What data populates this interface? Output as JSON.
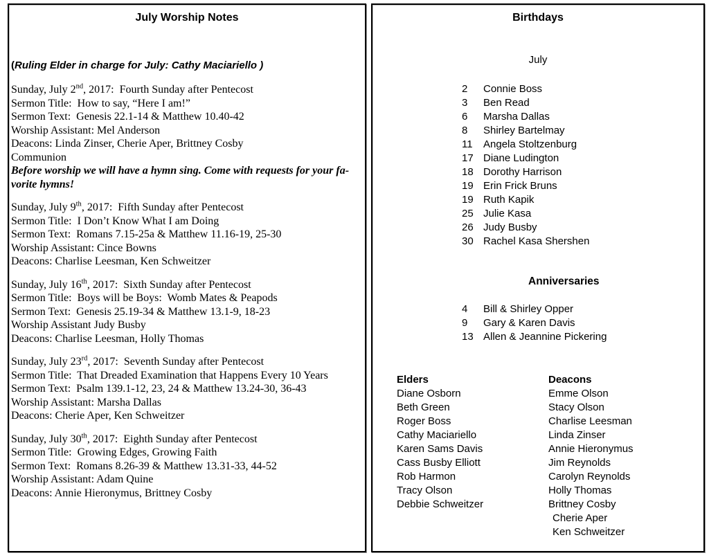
{
  "left_panel": {
    "title": "July Worship Notes",
    "ruling_elder": {
      "open_paren": "(",
      "text": "Ruling Elder in charge for July: Cathy Maciariello )"
    },
    "services": [
      {
        "date_prefix": "Sunday, July 2",
        "date_ordinal": "nd",
        "date_suffix": ", 2017:  Fourth Sunday after Pentecost",
        "sermon_title": "Sermon Title:  How to say, “Here I am!”",
        "sermon_text": "Sermon Text:  Genesis 22.1-14 & Matthew 10.40-42",
        "worship_assistant": "Worship Assistant: Mel Anderson",
        "deacons": "Deacons: Linda Zinser, Cherie Aper, Brittney Cosby",
        "extra": "Communion",
        "note": "Before worship we will have a hymn sing. Come with requests for your fa-\nvorite hymns!"
      },
      {
        "date_prefix": "Sunday, July 9",
        "date_ordinal": "th",
        "date_suffix": ", 2017:  Fifth Sunday after Pentecost",
        "sermon_title": "Sermon Title:  I Don’t Know What I am Doing",
        "sermon_text": "Sermon Text:  Romans 7.15-25a & Matthew 11.16-19, 25-30",
        "worship_assistant": "Worship Assistant: Cince Bowns",
        "deacons": "Deacons: Charlise Leesman, Ken Schweitzer"
      },
      {
        "date_prefix": "Sunday, July 16",
        "date_ordinal": "th",
        "date_suffix": ", 2017:  Sixth Sunday after Pentecost",
        "sermon_title": "Sermon Title:  Boys will be Boys:  Womb Mates & Peapods",
        "sermon_text": "Sermon Text:  Genesis 25.19-34 & Matthew 13.1-9, 18-23",
        "worship_assistant": "Worship Assistant Judy Busby",
        "deacons": "Deacons: Charlise Leesman, Holly Thomas"
      },
      {
        "date_prefix": "Sunday, July 23",
        "date_ordinal": "rd",
        "date_suffix": ", 2017:  Seventh Sunday after Pentecost",
        "sermon_title": "Sermon Title:  That Dreaded Examination that Happens Every 10 Years",
        "sermon_text": "Sermon Text:  Psalm 139.1-12, 23, 24 & Matthew 13.24-30, 36-43",
        "worship_assistant": "Worship Assistant: Marsha Dallas",
        "deacons": "Deacons: Cherie Aper, Ken Schweitzer"
      },
      {
        "date_prefix": "Sunday, July 30",
        "date_ordinal": "th",
        "date_suffix": ", 2017:  Eighth Sunday after Pentecost",
        "sermon_title": "Sermon Title:  Growing Edges, Growing Faith",
        "sermon_text": "Sermon Text:  Romans 8.26-39 & Matthew 13.31-33, 44-52",
        "worship_assistant": "Worship Assistant: Adam Quine",
        "deacons": "Deacons: Annie Hieronymus, Brittney Cosby"
      }
    ]
  },
  "right_panel": {
    "title": "Birthdays",
    "month": "July",
    "birthdays": [
      {
        "day": "2",
        "name": "Connie Boss"
      },
      {
        "day": "3",
        "name": "Ben Read"
      },
      {
        "day": "6",
        "name": "Marsha Dallas"
      },
      {
        "day": "8",
        "name": "Shirley Bartelmay"
      },
      {
        "day": "11",
        "name": "Angela Stoltzenburg"
      },
      {
        "day": "17",
        "name": "Diane Ludington"
      },
      {
        "day": "18",
        "name": "Dorothy Harrison"
      },
      {
        "day": "19",
        "name": "Erin Frick Bruns"
      },
      {
        "day": "19",
        "name": "Ruth Kapik"
      },
      {
        "day": "25",
        "name": "Julie Kasa"
      },
      {
        "day": "26",
        "name": "Judy Busby"
      },
      {
        "day": "30",
        "name": "Rachel Kasa Shershen"
      }
    ],
    "anniversaries_title": "Anniversaries",
    "anniversaries": [
      {
        "day": "4",
        "name": "Bill & Shirley Opper"
      },
      {
        "day": "9",
        "name": "Gary & Karen Davis"
      },
      {
        "day": "13",
        "name": "Allen & Jeannine Pickering"
      }
    ],
    "elders_title": "Elders",
    "elders": [
      "Diane Osborn",
      "Beth Green",
      "Roger Boss",
      "Cathy Maciariello",
      "Karen Sams Davis",
      "Cass Busby Elliott",
      "Rob Harmon",
      "Tracy Olson",
      "Debbie Schweitzer"
    ],
    "deacons_title": "Deacons",
    "deacons": [
      "Emme Olson",
      "Stacy Olson",
      "Charlise Leesman",
      "Linda Zinser",
      "Annie Hieronymus",
      "Jim Reynolds",
      "Carolyn Reynolds",
      "Holly Thomas",
      "Brittney Cosby",
      "Cherie Aper",
      "Ken Schweitzer"
    ]
  }
}
